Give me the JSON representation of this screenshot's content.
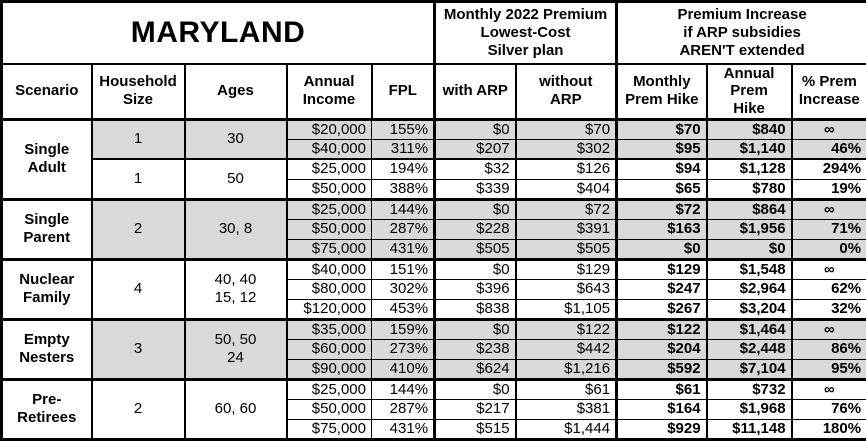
{
  "table": {
    "title": "MARYLAND",
    "premium_header": "Monthly 2022 Premium\nLowest-Cost\nSilver plan",
    "increase_header": "Premium Increase\nif ARP subsidies\nAREN'T extended",
    "columns": {
      "scenario": "Scenario",
      "household_size": "Household\nSize",
      "ages": "Ages",
      "annual_income": "Annual\nIncome",
      "fpl": "FPL",
      "with_arp": "with ARP",
      "without_arp": "without ARP",
      "monthly_hike": "Monthly\nPrem Hike",
      "annual_hike": "Annual\nPrem Hike",
      "pct_increase": "% Prem\nIncrease"
    },
    "colors": {
      "shaded_row": "#d9d9d9",
      "border": "#000000",
      "background": "#ffffff"
    },
    "groups": [
      {
        "scenario": "Single\nAdult",
        "subgroups": [
          {
            "household_size": "1",
            "ages": "30",
            "shaded": true,
            "rows": [
              {
                "income": "$20,000",
                "fpl": "155%",
                "with_arp": "$0",
                "without_arp": "$70",
                "monthly_hike": "$70",
                "annual_hike": "$840",
                "pct_increase": "∞"
              },
              {
                "income": "$40,000",
                "fpl": "311%",
                "with_arp": "$207",
                "without_arp": "$302",
                "monthly_hike": "$95",
                "annual_hike": "$1,140",
                "pct_increase": "46%"
              }
            ]
          },
          {
            "household_size": "1",
            "ages": "50",
            "shaded": false,
            "rows": [
              {
                "income": "$25,000",
                "fpl": "194%",
                "with_arp": "$32",
                "without_arp": "$126",
                "monthly_hike": "$94",
                "annual_hike": "$1,128",
                "pct_increase": "294%"
              },
              {
                "income": "$50,000",
                "fpl": "388%",
                "with_arp": "$339",
                "without_arp": "$404",
                "monthly_hike": "$65",
                "annual_hike": "$780",
                "pct_increase": "19%"
              }
            ]
          }
        ]
      },
      {
        "scenario": "Single\nParent",
        "subgroups": [
          {
            "household_size": "2",
            "ages": "30, 8",
            "shaded": true,
            "rows": [
              {
                "income": "$25,000",
                "fpl": "144%",
                "with_arp": "$0",
                "without_arp": "$72",
                "monthly_hike": "$72",
                "annual_hike": "$864",
                "pct_increase": "∞"
              },
              {
                "income": "$50,000",
                "fpl": "287%",
                "with_arp": "$228",
                "without_arp": "$391",
                "monthly_hike": "$163",
                "annual_hike": "$1,956",
                "pct_increase": "71%"
              },
              {
                "income": "$75,000",
                "fpl": "431%",
                "with_arp": "$505",
                "without_arp": "$505",
                "monthly_hike": "$0",
                "annual_hike": "$0",
                "pct_increase": "0%"
              }
            ]
          }
        ]
      },
      {
        "scenario": "Nuclear\nFamily",
        "subgroups": [
          {
            "household_size": "4",
            "ages": "40, 40\n15, 12",
            "shaded": false,
            "rows": [
              {
                "income": "$40,000",
                "fpl": "151%",
                "with_arp": "$0",
                "without_arp": "$129",
                "monthly_hike": "$129",
                "annual_hike": "$1,548",
                "pct_increase": "∞"
              },
              {
                "income": "$80,000",
                "fpl": "302%",
                "with_arp": "$396",
                "without_arp": "$643",
                "monthly_hike": "$247",
                "annual_hike": "$2,964",
                "pct_increase": "62%"
              },
              {
                "income": "$120,000",
                "fpl": "453%",
                "with_arp": "$838",
                "without_arp": "$1,105",
                "monthly_hike": "$267",
                "annual_hike": "$3,204",
                "pct_increase": "32%"
              }
            ]
          }
        ]
      },
      {
        "scenario": "Empty\nNesters",
        "subgroups": [
          {
            "household_size": "3",
            "ages": "50, 50\n24",
            "shaded": true,
            "rows": [
              {
                "income": "$35,000",
                "fpl": "159%",
                "with_arp": "$0",
                "without_arp": "$122",
                "monthly_hike": "$122",
                "annual_hike": "$1,464",
                "pct_increase": "∞"
              },
              {
                "income": "$60,000",
                "fpl": "273%",
                "with_arp": "$238",
                "without_arp": "$442",
                "monthly_hike": "$204",
                "annual_hike": "$2,448",
                "pct_increase": "86%"
              },
              {
                "income": "$90,000",
                "fpl": "410%",
                "with_arp": "$624",
                "without_arp": "$1,216",
                "monthly_hike": "$592",
                "annual_hike": "$7,104",
                "pct_increase": "95%"
              }
            ]
          }
        ]
      },
      {
        "scenario": "Pre-\nRetirees",
        "subgroups": [
          {
            "household_size": "2",
            "ages": "60, 60",
            "shaded": false,
            "rows": [
              {
                "income": "$25,000",
                "fpl": "144%",
                "with_arp": "$0",
                "without_arp": "$61",
                "monthly_hike": "$61",
                "annual_hike": "$732",
                "pct_increase": "∞"
              },
              {
                "income": "$50,000",
                "fpl": "287%",
                "with_arp": "$217",
                "without_arp": "$381",
                "monthly_hike": "$164",
                "annual_hike": "$1,968",
                "pct_increase": "76%"
              },
              {
                "income": "$75,000",
                "fpl": "431%",
                "with_arp": "$515",
                "without_arp": "$1,444",
                "monthly_hike": "$929",
                "annual_hike": "$11,148",
                "pct_increase": "180%"
              }
            ]
          }
        ]
      }
    ]
  }
}
